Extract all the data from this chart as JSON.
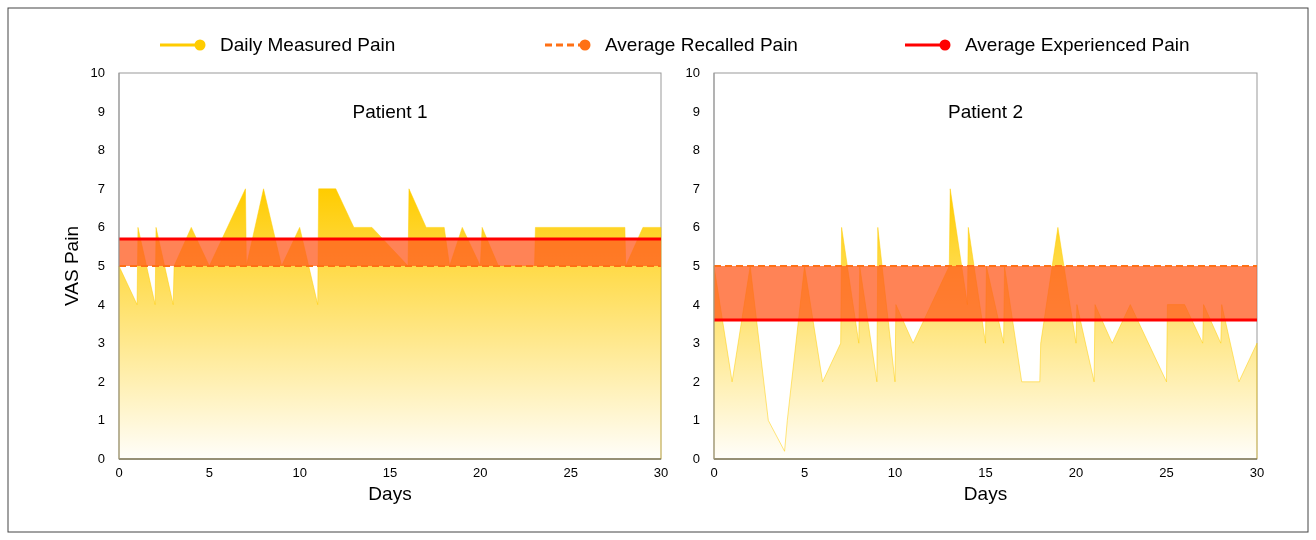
{
  "chart_data": [
    {
      "type": "area",
      "title": "Patient 1",
      "xlabel": "Days",
      "ylabel": "VAS Pain",
      "xlim": [
        0,
        30
      ],
      "xticks": [
        0,
        5,
        10,
        15,
        20,
        25,
        30
      ],
      "ylim": [
        0,
        10
      ],
      "yticks": [
        0,
        1,
        2,
        3,
        4,
        5,
        6,
        7,
        8,
        9,
        10
      ],
      "legend": "top",
      "series": [
        {
          "name": "Daily Measured Pain",
          "color": "#ffcc00",
          "x": [
            0,
            1,
            1.05,
            2,
            2.05,
            3,
            3.05,
            4,
            5,
            7,
            7.05,
            8,
            9,
            10,
            11,
            11.05,
            12,
            13,
            14,
            16,
            16.05,
            17,
            18,
            18.3,
            19,
            20,
            20.1,
            21,
            23,
            23.05,
            28,
            28.05,
            29,
            30
          ],
          "values": [
            5,
            4,
            6,
            4,
            6,
            4,
            5,
            6,
            5,
            7,
            5,
            7,
            5,
            6,
            4,
            7,
            7,
            6,
            6,
            5,
            7,
            6,
            6,
            5,
            6,
            5,
            6,
            5,
            5,
            6,
            6,
            5,
            6,
            6
          ]
        }
      ],
      "ref_lines": [
        {
          "axis": "y",
          "value": 5,
          "label": "Average Recalled Pain",
          "color": "#ff7015",
          "line_style": "dashed"
        },
        {
          "axis": "y",
          "value": 5.7,
          "label": "Average Experienced Pain",
          "color": "#ff0000",
          "line_style": "solid"
        }
      ],
      "bands": [
        {
          "axis": "y",
          "from": 5,
          "to": 5.7,
          "color": "#ff5a1e"
        }
      ]
    },
    {
      "type": "area",
      "title": "Patient 2",
      "xlabel": "Days",
      "xlim": [
        0,
        30
      ],
      "xticks": [
        0,
        5,
        10,
        15,
        20,
        25,
        30
      ],
      "ylim": [
        0,
        10
      ],
      "yticks": [
        0,
        1,
        2,
        3,
        4,
        5,
        6,
        7,
        8,
        9,
        10
      ],
      "series": [
        {
          "color": "#ffcc00",
          "x": [
            0,
            1,
            2,
            3,
            3.9,
            4.05,
            5,
            6,
            7,
            7.05,
            8,
            8.05,
            9,
            9.05,
            10,
            10.05,
            11,
            13,
            13.05,
            14,
            14.05,
            15,
            15.05,
            16,
            16.05,
            17,
            18,
            18.05,
            19,
            20,
            20.05,
            21,
            21.05,
            22,
            23,
            25,
            25.05,
            26,
            27,
            27.05,
            28,
            28.05,
            29,
            30
          ],
          "values": [
            5,
            2,
            5,
            1,
            0.2,
            1,
            5,
            2,
            3,
            6,
            3,
            5,
            2,
            6,
            2,
            4,
            3,
            5,
            7,
            4,
            6,
            3,
            5,
            3,
            5,
            2,
            2,
            3,
            6,
            3,
            4,
            2,
            4,
            3,
            4,
            2,
            4,
            4,
            3,
            4,
            3,
            4,
            2,
            3
          ]
        }
      ],
      "ref_lines": [
        {
          "axis": "y",
          "value": 5,
          "color": "#ff7015",
          "line_style": "dashed"
        },
        {
          "axis": "y",
          "value": 3.6,
          "color": "#ff0000",
          "line_style": "solid"
        }
      ],
      "bands": [
        {
          "axis": "y",
          "from": 3.6,
          "to": 5,
          "color": "#ff5a1e"
        }
      ]
    }
  ]
}
